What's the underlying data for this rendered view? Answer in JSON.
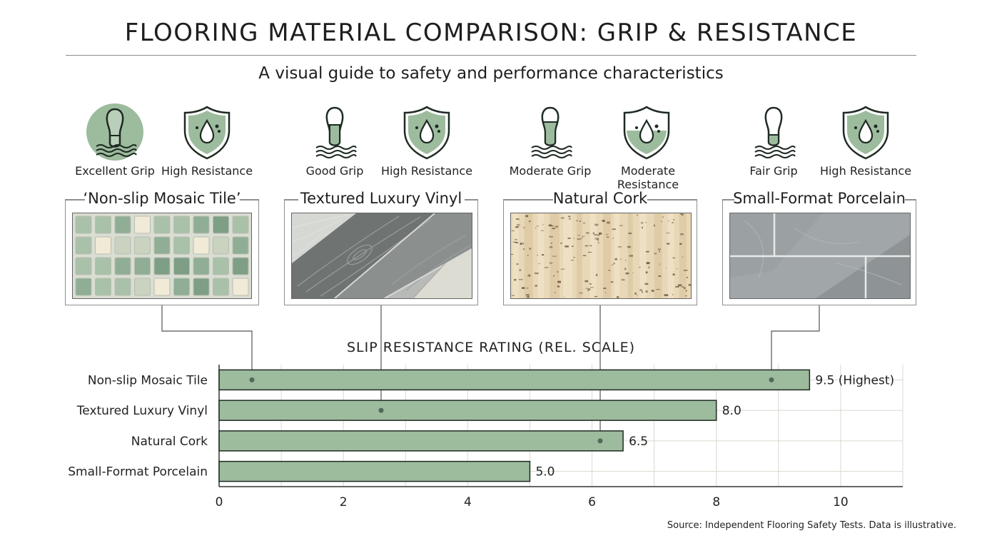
{
  "title": "FLOORING MATERIAL COMPARISON: GRIP & RESISTANCE",
  "subtitle": "A visual guide to safety and performance characteristics",
  "materials": [
    {
      "name": "‘Non-slip Mosaic Tile’",
      "grip_label": "Excellent Grip",
      "resistance_label": "High Resistance",
      "grip_level": 1.0,
      "resistance_level": 1.0
    },
    {
      "name": "Textured Luxury Vinyl",
      "grip_label": "Good Grip",
      "resistance_label": "High Resistance",
      "grip_level": 0.75,
      "resistance_level": 1.0
    },
    {
      "name": "Natural Cork",
      "grip_label": "Moderate Grip",
      "resistance_label": "Moderate Resistance",
      "grip_level": 0.5,
      "resistance_level": 0.5
    },
    {
      "name": "Small-Format Porcelain",
      "grip_label": "Fair Grip",
      "resistance_label": "High Resistance",
      "grip_level": 0.25,
      "resistance_level": 1.0
    }
  ],
  "colors": {
    "accent": "#9dbb9d",
    "accent_dark": "#4f6b58",
    "bar_fill": "#9dbb9d",
    "bar_stroke": "#1e2a22",
    "grid": "#d9d9d0",
    "connector": "#555555"
  },
  "icons": [
    "boot-print-icon",
    "water-drop-shield-icon"
  ],
  "chart_data": {
    "type": "bar",
    "orientation": "horizontal",
    "title": "SLIP RESISTANCE RATING (REL. SCALE)",
    "categories": [
      "Non-slip Mosaic Tile",
      "Textured Luxury Vinyl",
      "Natural Cork",
      "Small-Format Porcelain"
    ],
    "values": [
      9.5,
      8.0,
      6.5,
      5.0
    ],
    "data_labels": [
      "9.5 (Highest)",
      "8.0",
      "6.5",
      "5.0"
    ],
    "xlim": [
      0,
      11
    ],
    "xticks": [
      0,
      2,
      4,
      6,
      8,
      10
    ],
    "xtick_labels": [
      "0",
      "2",
      "4",
      "6",
      "8",
      "10"
    ],
    "grid": true
  },
  "source": "Source: Independent Flooring Safety Tests. Data is illustrative."
}
